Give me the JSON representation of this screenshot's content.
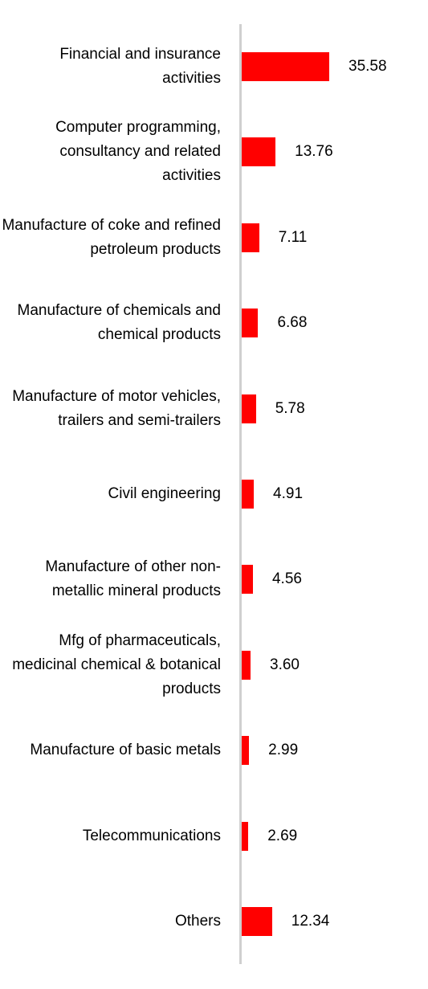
{
  "chart_data": {
    "type": "bar",
    "orientation": "horizontal",
    "categories": [
      "Financial and insurance activities",
      "Computer programming, consultancy and related activities",
      "Manufacture of coke and refined petroleum products",
      "Manufacture of chemicals and chemical products",
      "Manufacture of motor vehicles, trailers and semi-trailers",
      "Civil engineering",
      "Manufacture of other non-metallic mineral products",
      "Mfg of pharmaceuticals, medicinal chemical & botanical products",
      "Manufacture of basic metals",
      "Telecommunications",
      "Others"
    ],
    "values": [
      35.58,
      13.76,
      7.11,
      6.68,
      5.78,
      4.91,
      4.56,
      3.6,
      2.99,
      2.69,
      12.34
    ],
    "value_labels": [
      "35.58",
      "13.76",
      "7.11",
      "6.68",
      "5.78",
      "4.91",
      "4.56",
      "3.60",
      "2.99",
      "2.69",
      "12.34"
    ],
    "color": "#ff0000"
  }
}
